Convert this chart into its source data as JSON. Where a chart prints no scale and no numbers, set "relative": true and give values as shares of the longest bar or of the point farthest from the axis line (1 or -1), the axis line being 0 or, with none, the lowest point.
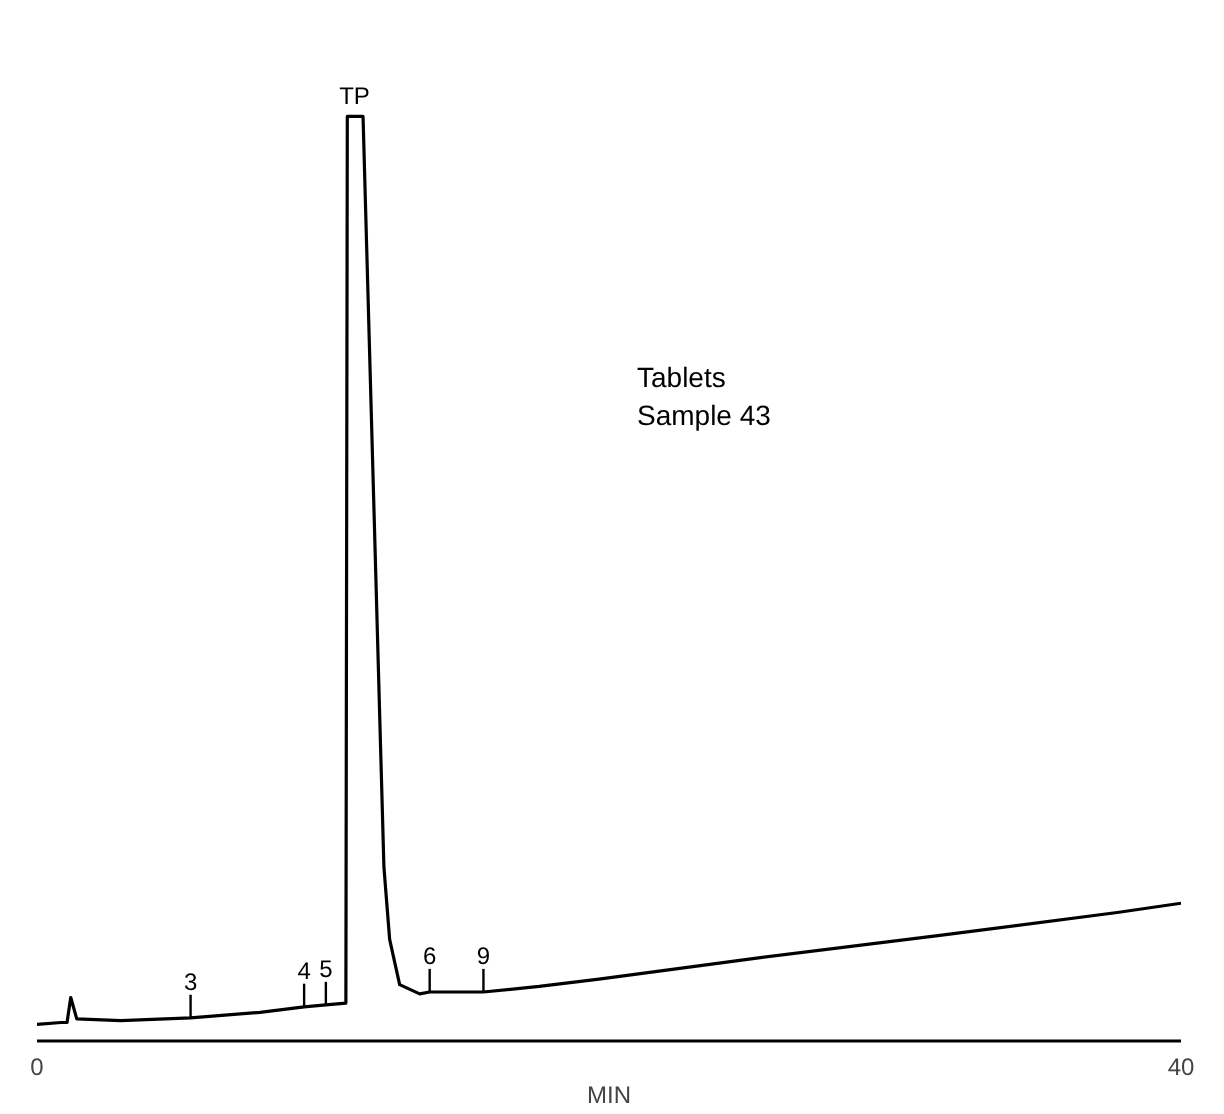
{
  "chart_data": {
    "type": "line",
    "xlabel": "MIN",
    "relative": true,
    "xlim": [
      0,
      40
    ],
    "xticks": [
      0,
      40
    ],
    "grid": false,
    "marker": "none",
    "line_style": "solid",
    "series": [
      {
        "color": "#000000",
        "x": [
          0,
          0.84,
          1.05,
          1.18,
          1.39,
          2.93,
          5.37,
          7.8,
          9.34,
          10.1,
          10.8,
          10.85,
          11.4,
          12.13,
          12.33,
          12.68,
          13.38,
          13.73,
          15.61,
          17.56,
          19.65,
          25.23,
          31.5,
          37.77,
          40
        ],
        "values": [
          0.018,
          0.02,
          0.02,
          0.047,
          0.024,
          0.022,
          0.025,
          0.031,
          0.037,
          0.039,
          0.041,
          1,
          1,
          0.188,
          0.11,
          0.061,
          0.051,
          0.053,
          0.053,
          0.059,
          0.067,
          0.09,
          0.114,
          0.139,
          0.149
        ]
      }
    ],
    "annotations": [
      {
        "text": "TP",
        "x": 11.1,
        "y": 1
      },
      {
        "text": "3",
        "x": 5.37,
        "y": 0.025
      },
      {
        "text": "4",
        "x": 9.34,
        "y": 0.037
      },
      {
        "text": "5",
        "x": 10.1,
        "y": 0.039
      },
      {
        "text": "6",
        "x": 13.73,
        "y": 0.053
      },
      {
        "text": "9",
        "x": 15.61,
        "y": 0.053
      },
      "Tablets\nSample 43"
    ]
  }
}
